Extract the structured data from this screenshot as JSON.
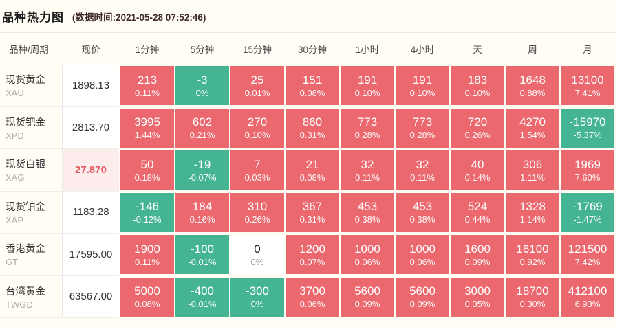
{
  "panel": {
    "title": "品种热力图",
    "timestamp_label": "(数据时间:2021-05-28 07:52:46)"
  },
  "chart_data": {
    "type": "heatmap",
    "title": "品种热力图",
    "data_time": "2021-05-28 07:52:46",
    "columns": [
      "品种/周期",
      "现价",
      "1分钟",
      "5分钟",
      "15分钟",
      "30分钟",
      "1小时",
      "4小时",
      "天",
      "周",
      "月"
    ],
    "rows": [
      {
        "name": "现货黄金",
        "code": "XAU",
        "price": "1898.13",
        "price_highlighted": false,
        "cells": [
          {
            "value": "213",
            "percent": "0.11%",
            "trend": "up"
          },
          {
            "value": "-3",
            "percent": "0%",
            "trend": "down"
          },
          {
            "value": "25",
            "percent": "0.01%",
            "trend": "up"
          },
          {
            "value": "151",
            "percent": "0.08%",
            "trend": "up"
          },
          {
            "value": "191",
            "percent": "0.10%",
            "trend": "up"
          },
          {
            "value": "191",
            "percent": "0.10%",
            "trend": "up"
          },
          {
            "value": "183",
            "percent": "0.10%",
            "trend": "up"
          },
          {
            "value": "1648",
            "percent": "0.88%",
            "trend": "up"
          },
          {
            "value": "13100",
            "percent": "7.41%",
            "trend": "up"
          }
        ]
      },
      {
        "name": "现货钯金",
        "code": "XPD",
        "price": "2813.70",
        "price_highlighted": false,
        "cells": [
          {
            "value": "3995",
            "percent": "1.44%",
            "trend": "up"
          },
          {
            "value": "602",
            "percent": "0.21%",
            "trend": "up"
          },
          {
            "value": "270",
            "percent": "0.10%",
            "trend": "up"
          },
          {
            "value": "860",
            "percent": "0.31%",
            "trend": "up"
          },
          {
            "value": "773",
            "percent": "0.28%",
            "trend": "up"
          },
          {
            "value": "773",
            "percent": "0.28%",
            "trend": "up"
          },
          {
            "value": "720",
            "percent": "0.26%",
            "trend": "up"
          },
          {
            "value": "4270",
            "percent": "1.54%",
            "trend": "up"
          },
          {
            "value": "-15970",
            "percent": "-5.37%",
            "trend": "down"
          }
        ]
      },
      {
        "name": "现货白银",
        "code": "XAG",
        "price": "27.870",
        "price_highlighted": true,
        "cells": [
          {
            "value": "50",
            "percent": "0.18%",
            "trend": "up"
          },
          {
            "value": "-19",
            "percent": "-0.07%",
            "trend": "down"
          },
          {
            "value": "7",
            "percent": "0.03%",
            "trend": "up"
          },
          {
            "value": "21",
            "percent": "0.08%",
            "trend": "up"
          },
          {
            "value": "32",
            "percent": "0.11%",
            "trend": "up"
          },
          {
            "value": "32",
            "percent": "0.11%",
            "trend": "up"
          },
          {
            "value": "40",
            "percent": "0.14%",
            "trend": "up"
          },
          {
            "value": "306",
            "percent": "1.11%",
            "trend": "up"
          },
          {
            "value": "1969",
            "percent": "7.60%",
            "trend": "up"
          }
        ]
      },
      {
        "name": "现货铂金",
        "code": "XAP",
        "price": "1183.28",
        "price_highlighted": false,
        "cells": [
          {
            "value": "-146",
            "percent": "-0.12%",
            "trend": "down"
          },
          {
            "value": "184",
            "percent": "0.16%",
            "trend": "up"
          },
          {
            "value": "310",
            "percent": "0.26%",
            "trend": "up"
          },
          {
            "value": "367",
            "percent": "0.31%",
            "trend": "up"
          },
          {
            "value": "453",
            "percent": "0.38%",
            "trend": "up"
          },
          {
            "value": "453",
            "percent": "0.38%",
            "trend": "up"
          },
          {
            "value": "524",
            "percent": "0.44%",
            "trend": "up"
          },
          {
            "value": "1328",
            "percent": "1.14%",
            "trend": "up"
          },
          {
            "value": "-1769",
            "percent": "-1.47%",
            "trend": "down"
          }
        ]
      },
      {
        "name": "香港黄金",
        "code": "GT",
        "price": "17595.00",
        "price_highlighted": false,
        "cells": [
          {
            "value": "1900",
            "percent": "0.11%",
            "trend": "up"
          },
          {
            "value": "-100",
            "percent": "-0.01%",
            "trend": "down"
          },
          {
            "value": "0",
            "percent": "0%",
            "trend": "flat"
          },
          {
            "value": "1200",
            "percent": "0.07%",
            "trend": "up"
          },
          {
            "value": "1000",
            "percent": "0.06%",
            "trend": "up"
          },
          {
            "value": "1000",
            "percent": "0.06%",
            "trend": "up"
          },
          {
            "value": "1600",
            "percent": "0.09%",
            "trend": "up"
          },
          {
            "value": "16100",
            "percent": "0.92%",
            "trend": "up"
          },
          {
            "value": "121500",
            "percent": "7.42%",
            "trend": "up"
          }
        ]
      },
      {
        "name": "台湾黄金",
        "code": "TWGD",
        "price": "63567.00",
        "price_highlighted": false,
        "cells": [
          {
            "value": "5000",
            "percent": "0.08%",
            "trend": "up"
          },
          {
            "value": "-400",
            "percent": "-0.01%",
            "trend": "down"
          },
          {
            "value": "-300",
            "percent": "0%",
            "trend": "down"
          },
          {
            "value": "3700",
            "percent": "0.06%",
            "trend": "up"
          },
          {
            "value": "5600",
            "percent": "0.09%",
            "trend": "up"
          },
          {
            "value": "5600",
            "percent": "0.09%",
            "trend": "up"
          },
          {
            "value": "3000",
            "percent": "0.05%",
            "trend": "up"
          },
          {
            "value": "18700",
            "percent": "0.30%",
            "trend": "up"
          },
          {
            "value": "412100",
            "percent": "6.93%",
            "trend": "up"
          }
        ]
      }
    ],
    "legend": {
      "up_color": "#ea686e",
      "down_color": "#45b493",
      "flat_background": "#ffffff",
      "highlight_price_background": "#fdecec",
      "highlight_price_color": "#e15c62"
    }
  }
}
